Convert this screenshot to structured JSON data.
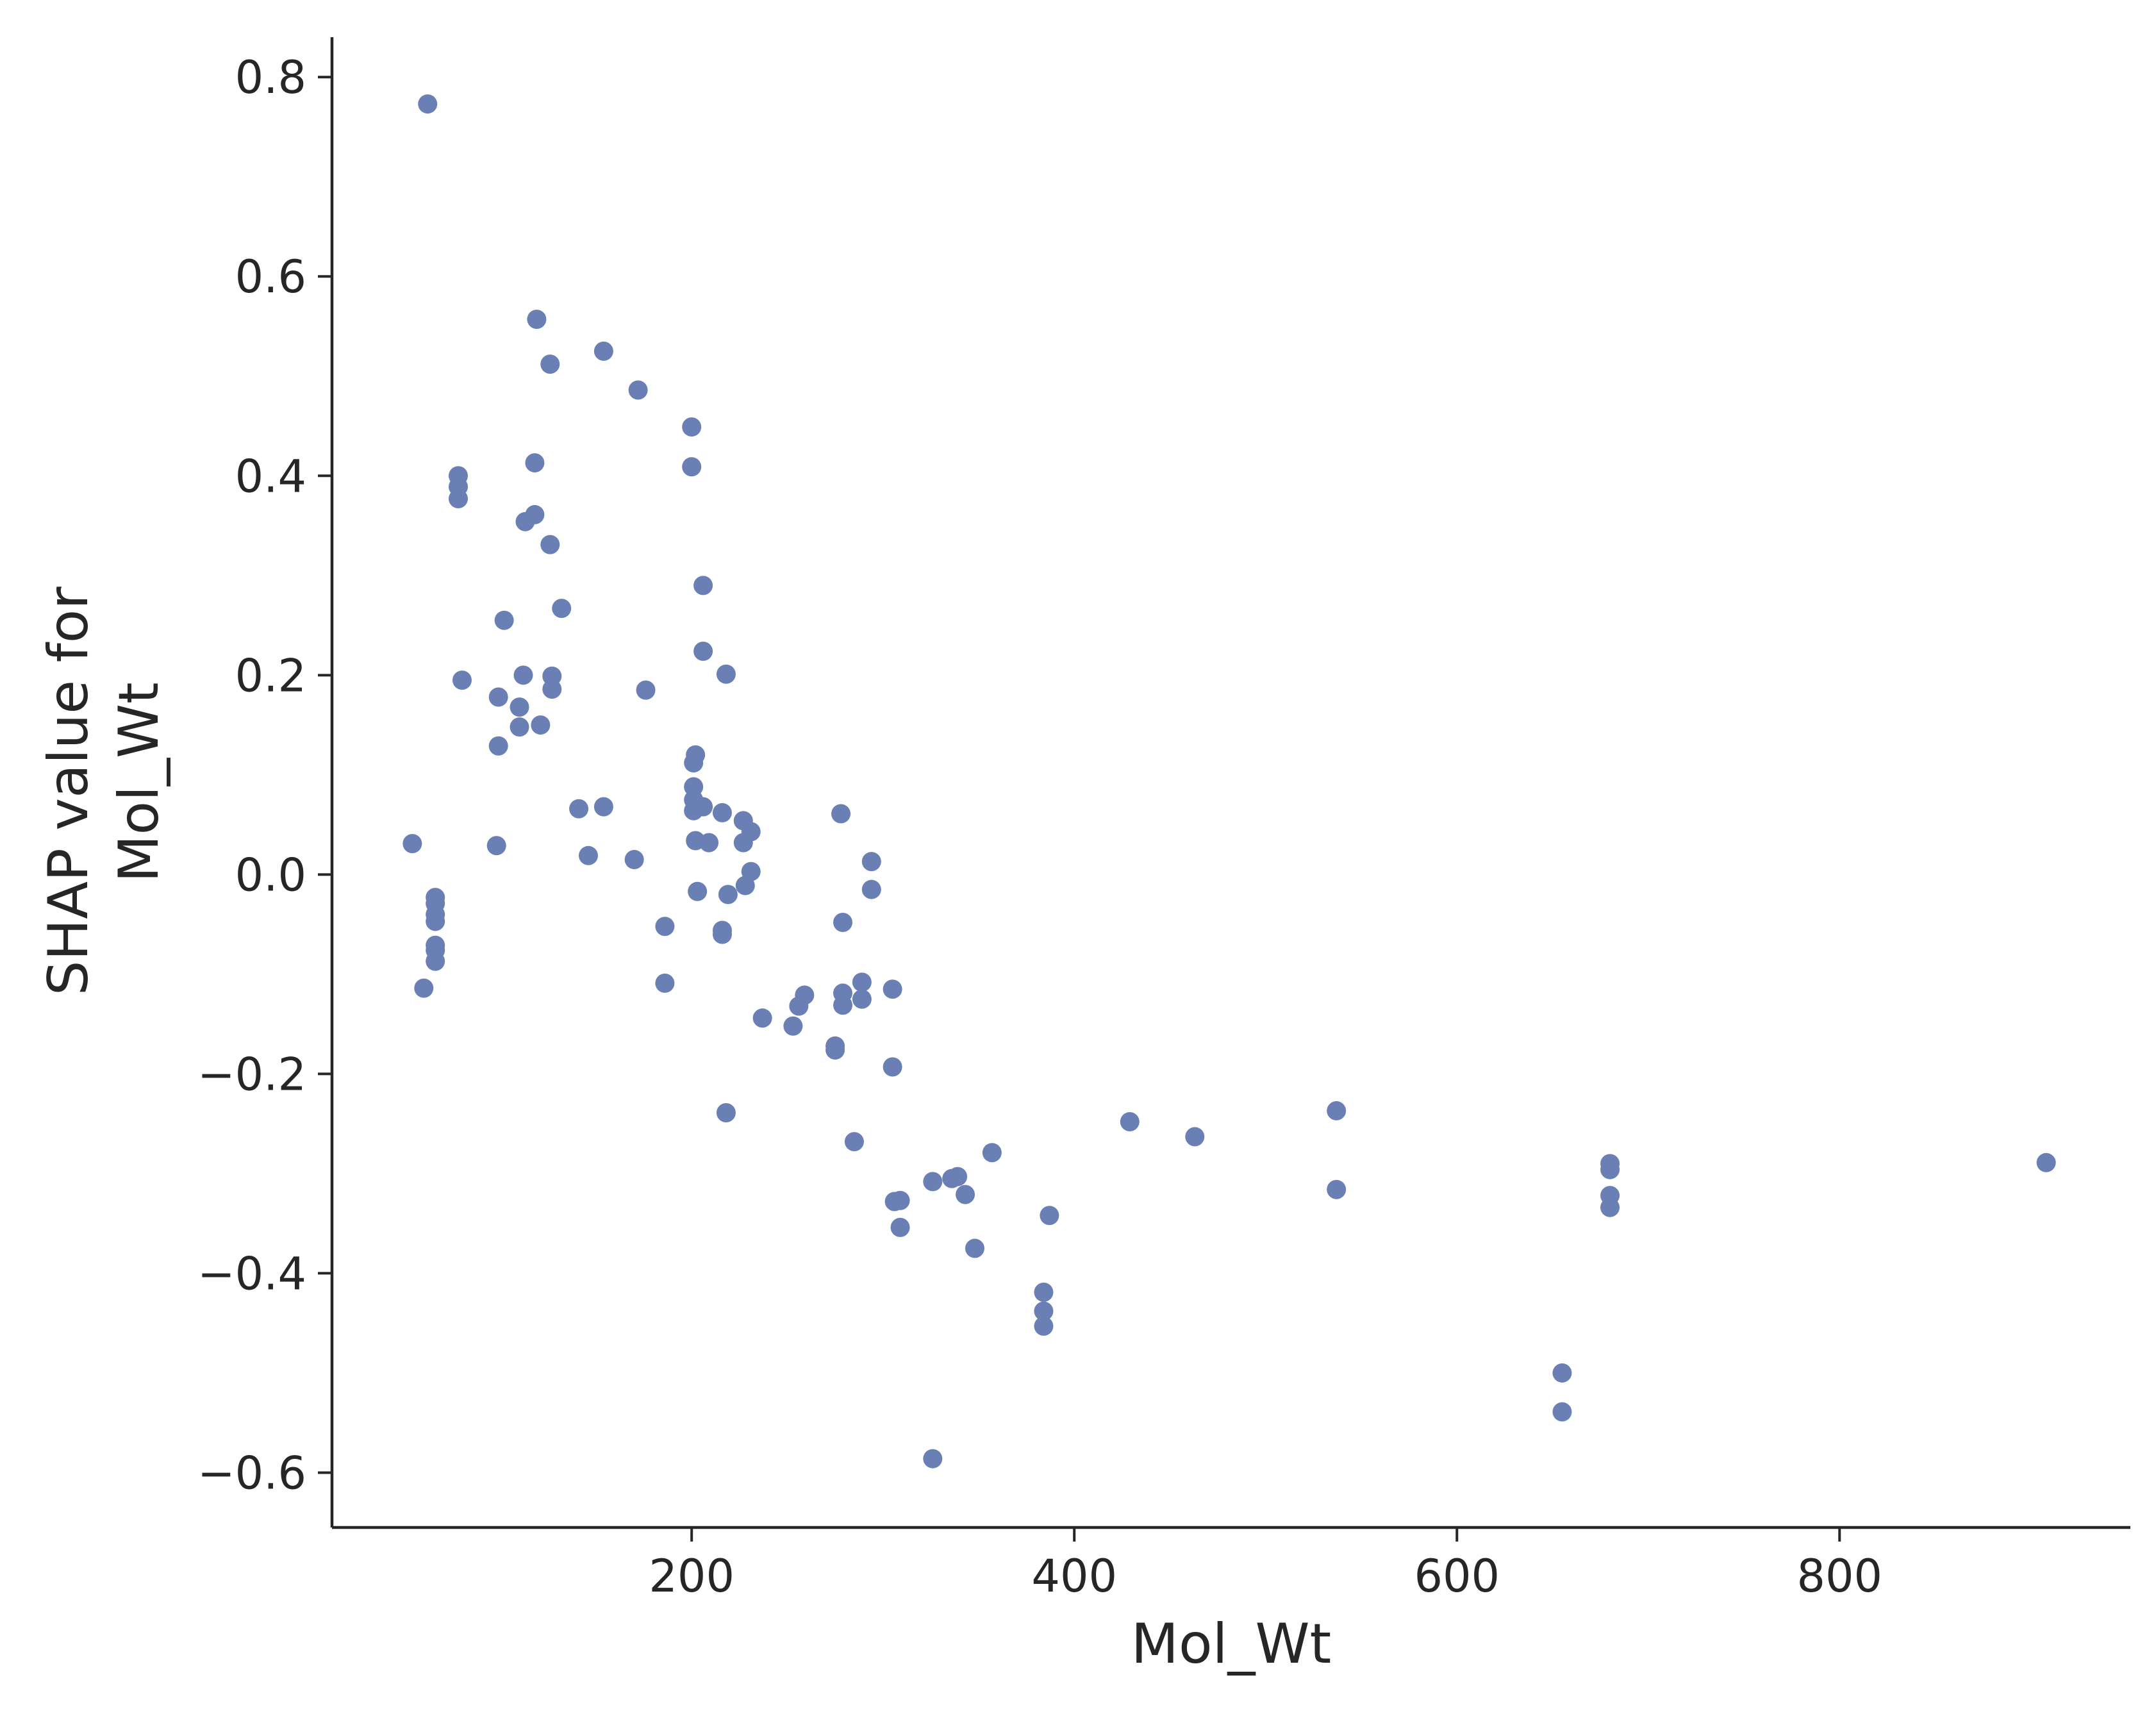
{
  "chart_data": {
    "type": "scatter",
    "title": "",
    "xlabel": "Mol_Wt",
    "ylabel_lines": [
      "SHAP value for",
      "Mol_Wt"
    ],
    "xlim": [
      12,
      952
    ],
    "ylim": [
      -0.655,
      0.84
    ],
    "xticks": [
      {
        "value": 200,
        "label": "200"
      },
      {
        "value": 400,
        "label": "400"
      },
      {
        "value": 600,
        "label": "600"
      },
      {
        "value": 800,
        "label": "800"
      }
    ],
    "yticks": [
      {
        "value": 0.8,
        "label": "0.8"
      },
      {
        "value": 0.6,
        "label": "0.6"
      },
      {
        "value": 0.4,
        "label": "0.4"
      },
      {
        "value": 0.2,
        "label": "0.2"
      },
      {
        "value": 0.0,
        "label": "0.0"
      },
      {
        "value": -0.2,
        "label": "−0.2"
      },
      {
        "value": -0.4,
        "label": "−0.4"
      },
      {
        "value": -0.6,
        "label": "−0.6"
      }
    ],
    "grid": false,
    "point_color": "#6a7fb4",
    "points": [
      [
        62,
        0.773
      ],
      [
        54,
        0.031
      ],
      [
        60,
        -0.114
      ],
      [
        66,
        -0.023
      ],
      [
        66,
        -0.029
      ],
      [
        66,
        -0.04
      ],
      [
        66,
        -0.047
      ],
      [
        66,
        -0.071
      ],
      [
        66,
        -0.076
      ],
      [
        66,
        -0.087
      ],
      [
        78,
        0.4
      ],
      [
        78,
        0.389
      ],
      [
        78,
        0.377
      ],
      [
        80,
        0.195
      ],
      [
        98,
        0.029
      ],
      [
        99,
        0.178
      ],
      [
        99,
        0.129
      ],
      [
        102,
        0.255
      ],
      [
        110,
        0.168
      ],
      [
        110,
        0.148
      ],
      [
        112,
        0.2
      ],
      [
        113,
        0.354
      ],
      [
        118,
        0.413
      ],
      [
        118,
        0.361
      ],
      [
        119,
        0.557
      ],
      [
        121,
        0.15
      ],
      [
        126,
        0.512
      ],
      [
        126,
        0.331
      ],
      [
        127,
        0.199
      ],
      [
        127,
        0.186
      ],
      [
        132,
        0.267
      ],
      [
        141,
        0.066
      ],
      [
        146,
        0.019
      ],
      [
        154,
        0.525
      ],
      [
        154,
        0.068
      ],
      [
        170,
        0.015
      ],
      [
        172,
        0.486
      ],
      [
        176,
        0.185
      ],
      [
        186,
        -0.052
      ],
      [
        186,
        -0.109
      ],
      [
        200,
        0.449
      ],
      [
        200,
        0.409
      ],
      [
        201,
        0.112
      ],
      [
        202,
        0.12
      ],
      [
        201,
        0.088
      ],
      [
        201,
        0.075
      ],
      [
        201,
        0.064
      ],
      [
        202,
        0.034
      ],
      [
        203,
        -0.017
      ],
      [
        206,
        0.29
      ],
      [
        206,
        0.224
      ],
      [
        206,
        0.068
      ],
      [
        209,
        0.032
      ],
      [
        216,
        0.062
      ],
      [
        216,
        -0.056
      ],
      [
        216,
        -0.06
      ],
      [
        218,
        0.201
      ],
      [
        218,
        -0.239
      ],
      [
        219,
        -0.02
      ],
      [
        227,
        0.054
      ],
      [
        227,
        0.032
      ],
      [
        228,
        -0.011
      ],
      [
        231,
        0.043
      ],
      [
        231,
        0.003
      ],
      [
        237,
        -0.144
      ],
      [
        253,
        -0.152
      ],
      [
        256,
        -0.132
      ],
      [
        259,
        -0.121
      ],
      [
        275,
        -0.176
      ],
      [
        275,
        -0.172
      ],
      [
        278,
        0.061
      ],
      [
        279,
        -0.048
      ],
      [
        279,
        -0.119
      ],
      [
        279,
        -0.131
      ],
      [
        285,
        -0.268
      ],
      [
        289,
        -0.108
      ],
      [
        289,
        -0.125
      ],
      [
        294,
        0.013
      ],
      [
        294,
        -0.015
      ],
      [
        305,
        -0.115
      ],
      [
        305,
        -0.193
      ],
      [
        306,
        -0.328
      ],
      [
        309,
        -0.327
      ],
      [
        309,
        -0.354
      ],
      [
        326,
        -0.308
      ],
      [
        326,
        -0.586
      ],
      [
        336,
        -0.305
      ],
      [
        339,
        -0.303
      ],
      [
        343,
        -0.321
      ],
      [
        348,
        -0.375
      ],
      [
        357,
        -0.279
      ],
      [
        384,
        -0.419
      ],
      [
        384,
        -0.438
      ],
      [
        384,
        -0.453
      ],
      [
        387,
        -0.342
      ],
      [
        429,
        -0.248
      ],
      [
        463,
        -0.263
      ],
      [
        537,
        -0.237
      ],
      [
        537,
        -0.316
      ],
      [
        655,
        -0.5
      ],
      [
        655,
        -0.539
      ],
      [
        680,
        -0.29
      ],
      [
        680,
        -0.296
      ],
      [
        680,
        -0.322
      ],
      [
        680,
        -0.334
      ],
      [
        908,
        -0.289
      ]
    ]
  }
}
